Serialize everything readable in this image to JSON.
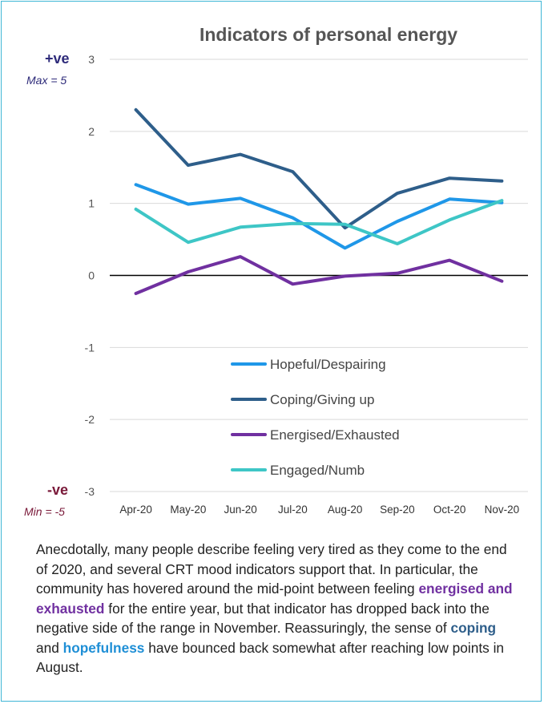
{
  "chart_data": {
    "type": "line",
    "title": "Indicators of personal energy",
    "categories": [
      "Apr-20",
      "May-20",
      "Jun-20",
      "Jul-20",
      "Aug-20",
      "Sep-20",
      "Oct-20",
      "Nov-20"
    ],
    "ylim": [
      -3,
      3
    ],
    "yticks": [
      3,
      2,
      1,
      0,
      -1,
      -2,
      -3
    ],
    "grid": true,
    "legend_position": "lower-right",
    "series": [
      {
        "name": "Hopeful/Despairing",
        "color": "#1f97e8",
        "values": [
          1.26,
          0.99,
          1.07,
          0.8,
          0.38,
          0.75,
          1.06,
          1.01
        ]
      },
      {
        "name": "Coping/Giving up",
        "color": "#2e5e8a",
        "values": [
          2.3,
          1.53,
          1.68,
          1.44,
          0.66,
          1.14,
          1.35,
          1.31
        ]
      },
      {
        "name": "Energised/Exhausted",
        "color": "#7030a0",
        "values": [
          -0.25,
          0.05,
          0.26,
          -0.12,
          -0.01,
          0.03,
          0.21,
          -0.08
        ]
      },
      {
        "name": "Engaged/Numb",
        "color": "#3ec6c6",
        "values": [
          0.92,
          0.46,
          0.67,
          0.72,
          0.71,
          0.44,
          0.77,
          1.04
        ]
      }
    ]
  },
  "labels": {
    "positive": "+ve",
    "positive_sub": "Max = 5",
    "negative": "-ve",
    "negative_sub": "Min = -5"
  },
  "paragraph": {
    "part1": "Anecdotally, many people describe feeling very tired as they come to the end of 2020, and several CRT mood indicators support that. In particular, the community has hovered around the mid-point between feeling ",
    "highlight_energised": "energised and exhausted",
    "part2": " for the entire year, but that indicator has dropped back into the negative side of the range in November.  Reassuringly, the sense of ",
    "highlight_coping": "coping",
    "part3": " and ",
    "highlight_hopeful": "hopefulness",
    "part4": " have bounced back somewhat after reaching low points in August."
  }
}
